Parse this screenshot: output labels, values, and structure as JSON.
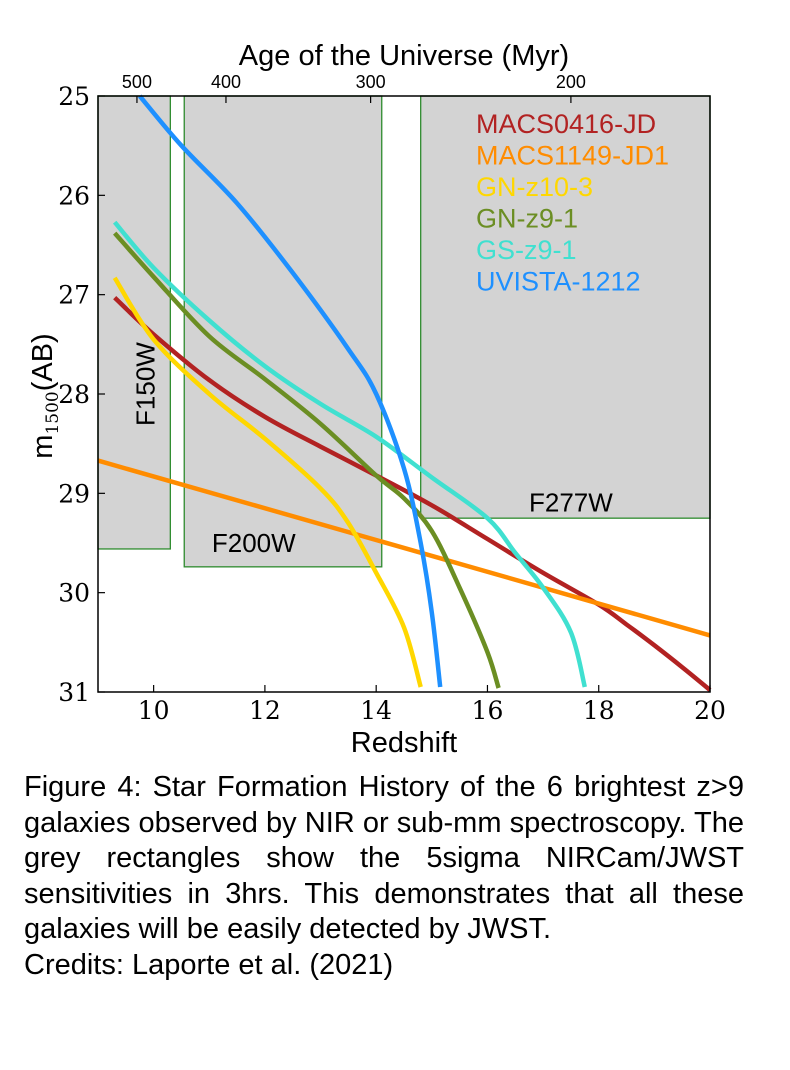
{
  "chart_data": {
    "type": "line",
    "title": "Age of the Universe (Myr)",
    "xlabel": "Redshift",
    "ylabel_prefix": "m",
    "ylabel_subscript": "1500",
    "ylabel_suffix": "(AB)",
    "xlim": [
      9,
      20
    ],
    "ylim": [
      31,
      25
    ],
    "y_inverted": true,
    "grid": false,
    "legend_placement": "top-right",
    "x_ticks": [
      10,
      12,
      14,
      16,
      18,
      20
    ],
    "x_tick_labels": [
      "10",
      "12",
      "14",
      "16",
      "18",
      "20"
    ],
    "y_ticks": [
      25,
      26,
      27,
      28,
      29,
      30,
      31
    ],
    "y_tick_labels": [
      "25",
      "26",
      "27",
      "28",
      "29",
      "30",
      "31"
    ],
    "top_axis": {
      "label": "Age of the Universe (Myr)",
      "ticks": [
        {
          "label": "500",
          "z": 9.7
        },
        {
          "label": "400",
          "z": 11.3
        },
        {
          "label": "300",
          "z": 13.9
        },
        {
          "label": "200",
          "z": 17.5
        }
      ]
    },
    "sensitivity_regions": [
      {
        "name": "F150W",
        "label": "F150W",
        "x": [
          9.0,
          10.3
        ],
        "limit_mag": 29.56,
        "label_orientation": "vertical",
        "label_anchor": [
          9.85,
          27.9
        ]
      },
      {
        "name": "F200W",
        "label": "F200W",
        "x": [
          10.55,
          14.1
        ],
        "limit_mag": 29.74,
        "label_orientation": "horizontal",
        "label_anchor": [
          11.8,
          29.5
        ]
      },
      {
        "name": "F277W",
        "label": "F277W",
        "x": [
          14.8,
          20.0
        ],
        "limit_mag": 29.25,
        "label_orientation": "horizontal",
        "label_anchor": [
          17.5,
          29.09
        ]
      }
    ],
    "series": [
      {
        "name": "MACS0416-JD",
        "color": "#b22222",
        "x": [
          9.3,
          10.0,
          11.0,
          12.0,
          13.0,
          14.0,
          15.0,
          16.0,
          17.0,
          18.0,
          18.5,
          19.0,
          19.5,
          20.0
        ],
        "y": [
          27.03,
          27.4,
          27.86,
          28.23,
          28.53,
          28.82,
          29.12,
          29.46,
          29.8,
          30.12,
          30.32,
          30.53,
          30.75,
          30.98
        ]
      },
      {
        "name": "MACS1149-JD1",
        "color": "#ff8c00",
        "x": [
          9.0,
          20.0
        ],
        "y": [
          28.67,
          30.43
        ]
      },
      {
        "name": "GN-z10-3",
        "color": "#ffd700",
        "x": [
          9.3,
          10.0,
          11.0,
          12.0,
          13.0,
          13.5,
          14.0,
          14.5,
          14.8
        ],
        "y": [
          26.83,
          27.45,
          28.0,
          28.45,
          28.95,
          29.3,
          29.8,
          30.35,
          30.95
        ]
      },
      {
        "name": "GN-z9-1",
        "color": "#6b8e23",
        "x": [
          9.3,
          10.0,
          11.0,
          12.0,
          13.0,
          14.0,
          14.5,
          15.0,
          15.5,
          16.0,
          16.2
        ],
        "y": [
          26.38,
          26.82,
          27.42,
          27.85,
          28.3,
          28.82,
          29.05,
          29.38,
          29.95,
          30.6,
          30.96
        ]
      },
      {
        "name": "GS-z9-1",
        "color": "#40e0d0",
        "x": [
          9.3,
          10.0,
          11.0,
          12.0,
          13.0,
          14.0,
          15.0,
          16.0,
          16.5,
          17.0,
          17.5,
          17.75
        ],
        "y": [
          26.27,
          26.73,
          27.26,
          27.72,
          28.1,
          28.43,
          28.84,
          29.25,
          29.6,
          29.95,
          30.4,
          30.95
        ]
      },
      {
        "name": "UVISTA-1212",
        "color": "#1e90ff",
        "x": [
          9.75,
          10.5,
          11.5,
          12.5,
          13.5,
          14.0,
          14.5,
          14.8,
          15.0,
          15.15
        ],
        "y": [
          25.0,
          25.5,
          26.08,
          26.78,
          27.55,
          28.0,
          28.75,
          29.5,
          30.2,
          30.95
        ]
      }
    ]
  },
  "caption": {
    "text": "Figure 4: Star Formation History of the 6 brightest z>9 galaxies observed by NIR or sub-mm spectroscopy. The grey rectangles show the 5sigma NIRCam/JWST sensitivities in 3hrs. This demonstrates that all these galaxies will be easily detected by JWST.",
    "credits": "Credits: Laporte et al. (2021)"
  }
}
